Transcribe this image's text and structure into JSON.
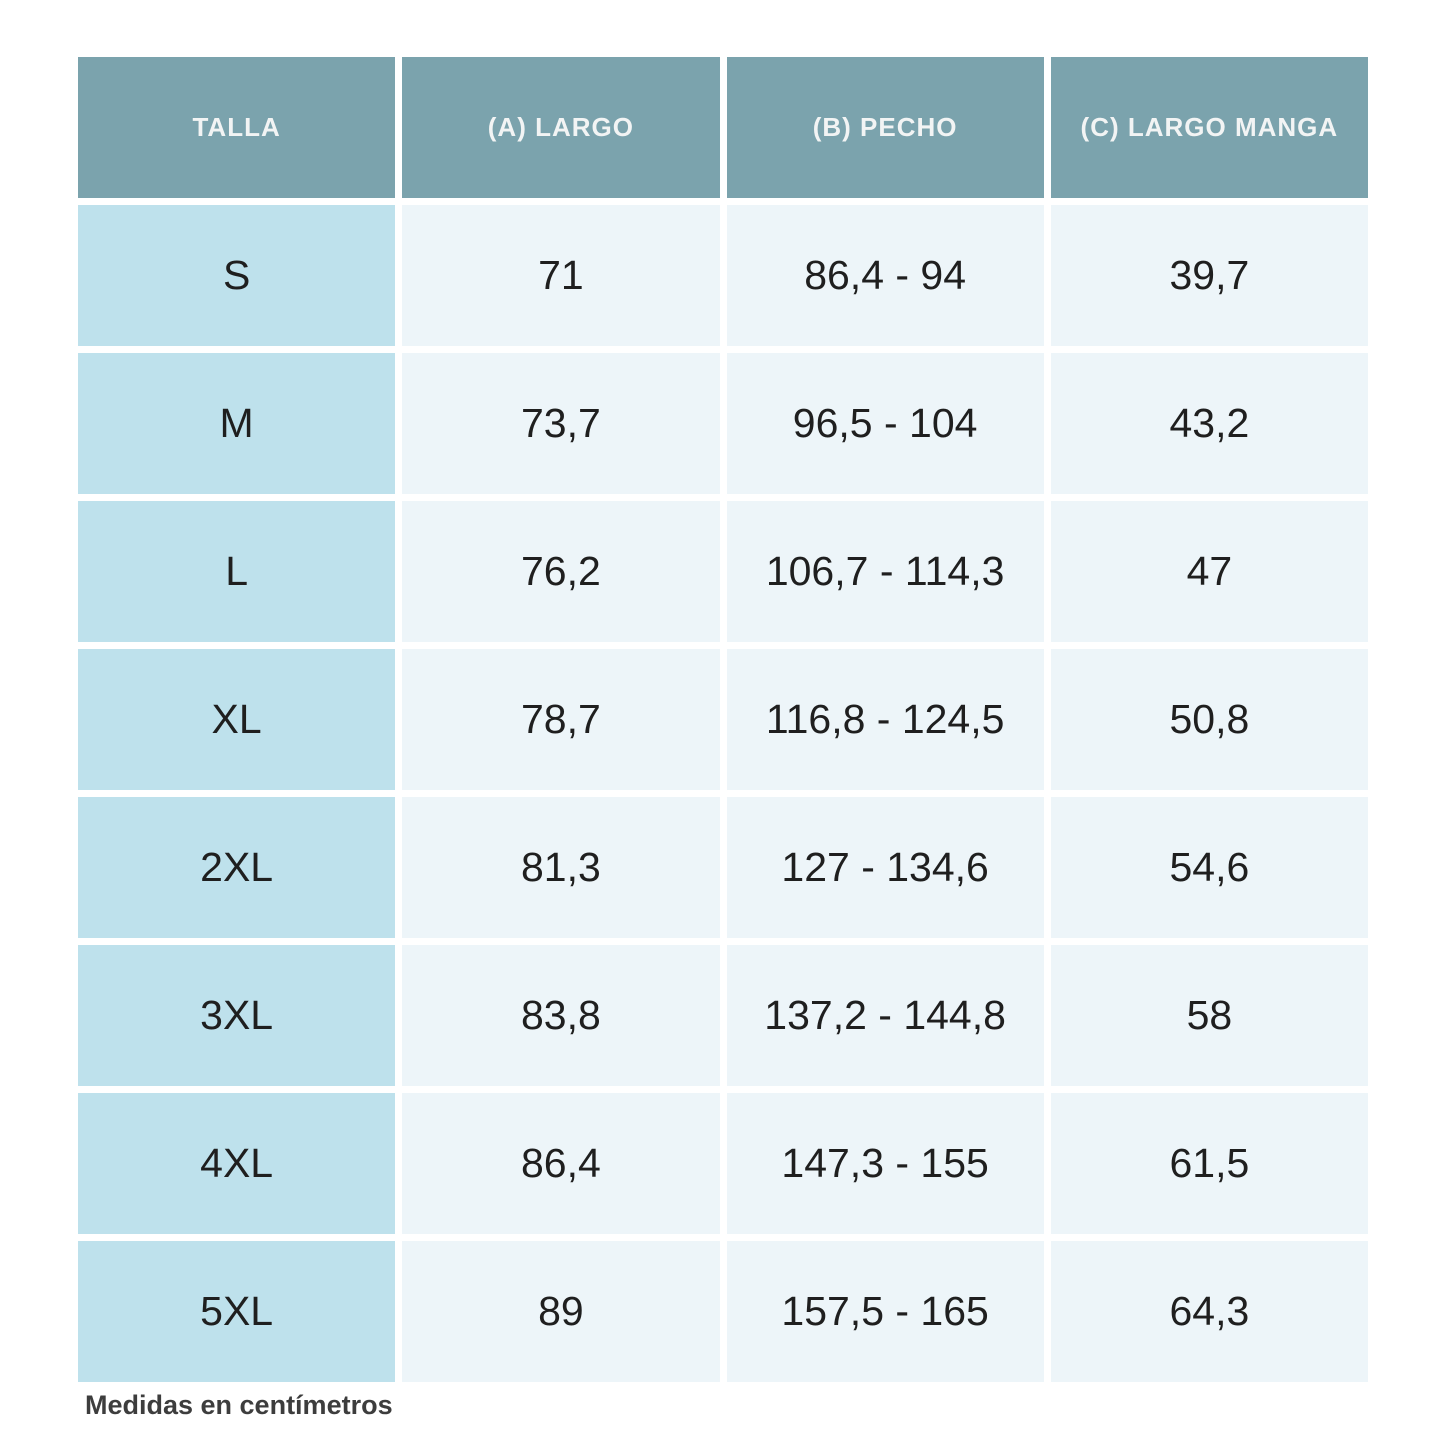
{
  "chart_data": {
    "type": "table",
    "columns": [
      "TALLA",
      "(A) LARGO",
      "(B) PECHO",
      "(C) LARGO MANGA"
    ],
    "rows": [
      [
        "S",
        "71",
        "86,4 - 94",
        "39,7"
      ],
      [
        "M",
        "73,7",
        "96,5 - 104",
        "43,2"
      ],
      [
        "L",
        "76,2",
        "106,7 - 114,3",
        "47"
      ],
      [
        "XL",
        "78,7",
        "116,8 - 124,5",
        "50,8"
      ],
      [
        "2XL",
        "81,3",
        "127 - 134,6",
        "54,6"
      ],
      [
        "3XL",
        "83,8",
        "137,2 - 144,8",
        "58"
      ],
      [
        "4XL",
        "86,4",
        "147,3 - 155",
        "61,5"
      ],
      [
        "5XL",
        "89",
        "157,5 - 165",
        "64,3"
      ]
    ],
    "footnote": "Medidas en centímetros"
  },
  "colors": {
    "header_bg": "#7ba3ad",
    "header_text": "#f2f4f4",
    "size_cell_bg": "#bee1ec",
    "data_cell_bg": "#edf5f9",
    "data_text": "#1f1f1f",
    "footnote_text": "#3d3d3d",
    "page_bg": "#ffffff"
  }
}
